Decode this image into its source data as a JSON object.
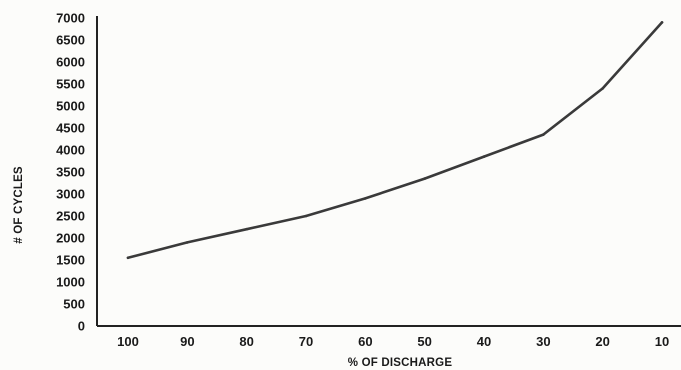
{
  "chart_data": {
    "type": "line",
    "xlabel": "% OF DISCHARGE",
    "ylabel": "# OF CYCLES",
    "x": [
      100,
      90,
      80,
      70,
      60,
      50,
      40,
      30,
      20,
      10
    ],
    "x_tick_labels": [
      "100",
      "90",
      "80",
      "70",
      "60",
      "50",
      "40",
      "30",
      "20",
      "10"
    ],
    "x_reversed": true,
    "y_ticks": [
      0,
      500,
      1000,
      1500,
      2000,
      2500,
      3000,
      3500,
      4000,
      4500,
      5000,
      5500,
      6000,
      6500,
      7000
    ],
    "y_tick_labels": [
      "0",
      "500",
      "1000",
      "1500",
      "2000",
      "2500",
      "3000",
      "3500",
      "4000",
      "4500",
      "5000",
      "5500",
      "6000",
      "6500",
      "7000"
    ],
    "ylim": [
      0,
      7000
    ],
    "series": [
      {
        "values": [
          1550,
          1900,
          2200,
          2500,
          2900,
          3350,
          3850,
          4350,
          5400,
          6900
        ]
      }
    ],
    "grid": false,
    "line_color": "#3a3a3a"
  }
}
